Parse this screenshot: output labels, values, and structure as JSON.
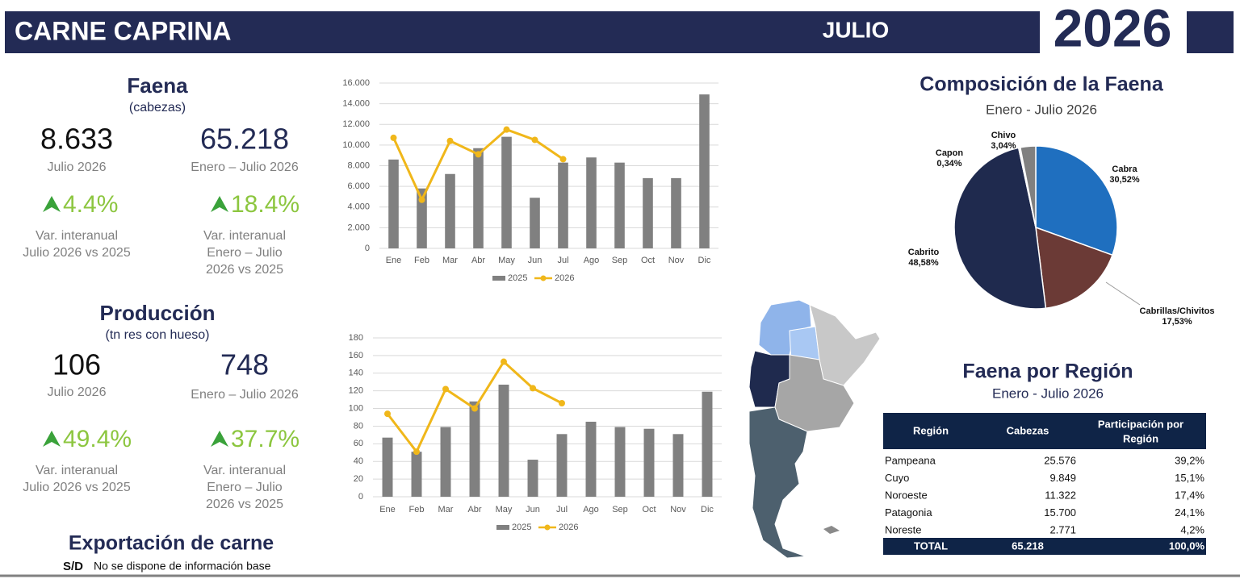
{
  "header": {
    "title": "CARNE CAPRINA",
    "month": "JULIO",
    "year": "2026"
  },
  "faena": {
    "title": "Faena",
    "unit": "(cabezas)",
    "kpis": [
      {
        "value": "8.633",
        "period": "Julio 2026",
        "change": "4.4%",
        "note": [
          "Var. interanual",
          "Julio 2026 vs 2025"
        ]
      },
      {
        "value": "65.218",
        "period": "Enero – Julio 2026",
        "change": "18.4%",
        "note": [
          "Var. interanual",
          "Enero – Julio",
          "2026 vs 2025"
        ]
      }
    ]
  },
  "produccion": {
    "title": "Producción",
    "unit": "(tn res con hueso)",
    "kpis": [
      {
        "value": "106",
        "period": "Julio 2026",
        "change": "49.4%",
        "note": [
          "Var. interanual",
          "Julio 2026 vs 2025"
        ]
      },
      {
        "value": "748",
        "period": "Enero – Julio 2026",
        "change": "37.7%",
        "note": [
          "Var. interanual",
          "Enero – Julio",
          "2026 vs 2025"
        ]
      }
    ]
  },
  "exportacion": {
    "title": "Exportación de carne",
    "status": "S/D",
    "note": "No se dispone de información base"
  },
  "region_table": {
    "title": "Faena por Región",
    "subtitle": "Enero - Julio 2026",
    "columns": [
      "Región",
      "Cabezas",
      "Participación por Región"
    ],
    "rows": [
      [
        "Pampeana",
        "25.576",
        "39,2%"
      ],
      [
        "Cuyo",
        "9.849",
        "15,1%"
      ],
      [
        "Noroeste",
        "11.322",
        "17,4%"
      ],
      [
        "Patagonia",
        "15.700",
        "24,1%"
      ],
      [
        "Noreste",
        "2.771",
        "4,2%"
      ]
    ],
    "total": [
      "TOTAL",
      "65.218",
      "100,0%"
    ]
  },
  "chart_data": [
    {
      "type": "bar",
      "categories": [
        "Ene",
        "Feb",
        "Mar",
        "Abr",
        "May",
        "Jun",
        "Jul",
        "Ago",
        "Sep",
        "Oct",
        "Nov",
        "Dic"
      ],
      "series": [
        {
          "name": "2025",
          "type": "bar",
          "color": "#808080",
          "values": [
            8600,
            5800,
            7200,
            9700,
            10800,
            4900,
            8300,
            8800,
            8300,
            6800,
            6800,
            14900
          ]
        },
        {
          "name": "2026",
          "type": "line",
          "color": "#f0b71a",
          "values": [
            10700,
            4700,
            10400,
            9100,
            11500,
            10500,
            8633,
            null,
            null,
            null,
            null,
            null
          ]
        }
      ],
      "ylim": [
        0,
        16000
      ],
      "yticks": [
        0,
        {
          "value": 2000,
          "label": "2.000"
        },
        {
          "value": 4000,
          "label": "4.000"
        },
        {
          "value": 6000,
          "label": "6.000"
        },
        {
          "value": 8000,
          "label": "8.000"
        },
        {
          "value": 10000,
          "label": "10.000"
        },
        {
          "value": 12000,
          "label": "12.000"
        },
        {
          "value": 14000,
          "label": "14.000"
        },
        {
          "value": 16000,
          "label": "16.000"
        }
      ],
      "grid": true,
      "legend": "bottom"
    },
    {
      "type": "bar",
      "categories": [
        "Ene",
        "Feb",
        "Mar",
        "Abr",
        "May",
        "Jun",
        "Jul",
        "Ago",
        "Sep",
        "Oct",
        "Nov",
        "Dic"
      ],
      "series": [
        {
          "name": "2025",
          "type": "bar",
          "color": "#808080",
          "values": [
            67,
            51,
            79,
            108,
            127,
            42,
            71,
            85,
            79,
            77,
            71,
            119
          ]
        },
        {
          "name": "2026",
          "type": "line",
          "color": "#f0b71a",
          "values": [
            94,
            51,
            122,
            100,
            153,
            123,
            106,
            null,
            null,
            null,
            null,
            null
          ]
        }
      ],
      "ylim": [
        0,
        180
      ],
      "yticks": [
        0,
        20,
        40,
        60,
        80,
        100,
        120,
        140,
        160,
        180
      ],
      "grid": true,
      "legend": "bottom"
    },
    {
      "type": "pie",
      "title": "Composición de la Faena",
      "subtitle": "Enero - Julio 2026",
      "categories": [
        "Cabra",
        "Cabrillas/Chivitos",
        "Cabrito",
        "Capon",
        "Chivo"
      ],
      "values": [
        30.52,
        17.53,
        48.58,
        0.34,
        3.04
      ],
      "value_labels": [
        "30,52%",
        "17,53%",
        "48,58%",
        "0,34%",
        "3,04%"
      ],
      "colors": [
        "#1f6fbf",
        "#6b3a36",
        "#1f2a4e",
        "#e6e6e6",
        "#808080"
      ]
    }
  ]
}
